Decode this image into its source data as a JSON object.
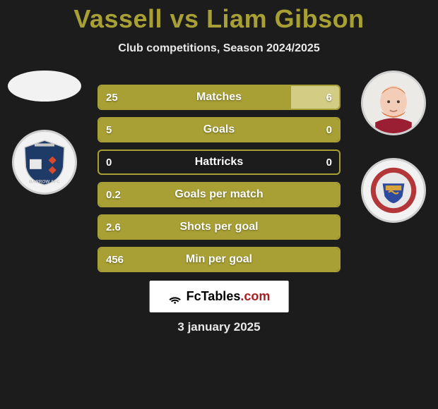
{
  "title": "Vassell vs Liam Gibson",
  "subtitle": "Club competitions, Season 2024/2025",
  "brand": {
    "prefix": "FcTables",
    "suffix": ".com"
  },
  "date": "3 january 2025",
  "colors": {
    "accent": "#a8a035",
    "bg": "#1c1c1c",
    "text": "#ffffff",
    "brand_red": "#aa2020"
  },
  "players": {
    "left": {
      "name": "Vassell",
      "has_photo": false
    },
    "right": {
      "name": "Liam Gibson",
      "has_photo": true
    }
  },
  "stats": [
    {
      "label": "Matches",
      "left_val": "25",
      "right_val": "6",
      "left_pct": 80,
      "right_pct": 20,
      "left_bg": "#a8a035",
      "right_bg": "#d2cc85"
    },
    {
      "label": "Goals",
      "left_val": "5",
      "right_val": "0",
      "left_pct": 100,
      "right_pct": 0,
      "left_bg": "#a8a035",
      "right_bg": "#a8a035"
    },
    {
      "label": "Hattricks",
      "left_val": "0",
      "right_val": "0",
      "left_pct": 50,
      "right_pct": 50,
      "left_bg": "transparent",
      "right_bg": "transparent"
    },
    {
      "label": "Goals per match",
      "left_val": "0.2",
      "right_val": "",
      "left_pct": 100,
      "right_pct": 0,
      "left_bg": "#a8a035",
      "right_bg": "#a8a035"
    },
    {
      "label": "Shots per goal",
      "left_val": "2.6",
      "right_val": "",
      "left_pct": 100,
      "right_pct": 0,
      "left_bg": "#a8a035",
      "right_bg": "#a8a035"
    },
    {
      "label": "Min per goal",
      "left_val": "456",
      "right_val": "",
      "left_pct": 100,
      "right_pct": 0,
      "left_bg": "#a8a035",
      "right_bg": "#a8a035"
    }
  ]
}
